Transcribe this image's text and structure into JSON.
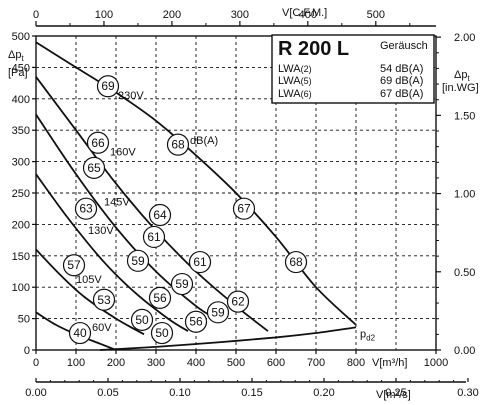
{
  "chart_data": {
    "type": "line",
    "axes": {
      "bottom_primary": {
        "label": "V[m³/h]",
        "ticks": [
          "0",
          "100",
          "200",
          "300",
          "400",
          "500",
          "600",
          "700",
          "800",
          "1000"
        ],
        "range": [
          0,
          1000
        ]
      },
      "bottom_secondary": {
        "label": "V[m³/s]",
        "ticks": [
          "0.00",
          "0.05",
          "0.10",
          "0.15",
          "0.20",
          "0.25",
          "0.30"
        ],
        "range": [
          0,
          0.3
        ]
      },
      "top": {
        "label": "V[C.F.M.]",
        "ticks": [
          "0",
          "100",
          "200",
          "300",
          "400",
          "500"
        ]
      },
      "left": {
        "label_1": "Δp",
        "label_sub": "t",
        "label_2": "[Pa]",
        "ticks": [
          "0",
          "50",
          "100",
          "150",
          "200",
          "250",
          "300",
          "350",
          "400",
          "450",
          "500"
        ],
        "range": [
          0,
          500
        ]
      },
      "right": {
        "label_1": "Δp",
        "label_sub": "t",
        "label_2": "[in.WG]",
        "ticks": [
          "0.00",
          "0.50",
          "1.00",
          "1.50",
          "2.00"
        ]
      }
    },
    "grid": true,
    "series": [
      {
        "name": "230V",
        "points": [
          [
            0,
            490
          ],
          [
            100,
            450
          ],
          [
            200,
            410
          ],
          [
            300,
            365
          ],
          [
            400,
            310
          ],
          [
            500,
            250
          ],
          [
            600,
            180
          ],
          [
            700,
            100
          ],
          [
            800,
            40
          ]
        ]
      },
      {
        "name": "160V",
        "points": [
          [
            0,
            435
          ],
          [
            100,
            350
          ],
          [
            200,
            265
          ],
          [
            300,
            190
          ],
          [
            400,
            125
          ],
          [
            500,
            70
          ],
          [
            580,
            30
          ]
        ]
      },
      {
        "name": "145V",
        "points": [
          [
            0,
            375
          ],
          [
            100,
            280
          ],
          [
            200,
            195
          ],
          [
            300,
            125
          ],
          [
            400,
            70
          ],
          [
            450,
            50
          ]
        ]
      },
      {
        "name": "130V",
        "points": [
          [
            0,
            280
          ],
          [
            80,
            210
          ],
          [
            170,
            140
          ],
          [
            250,
            90
          ],
          [
            330,
            50
          ],
          [
            380,
            30
          ]
        ]
      },
      {
        "name": "105V",
        "points": [
          [
            0,
            160
          ],
          [
            60,
            120
          ],
          [
            120,
            85
          ],
          [
            200,
            50
          ],
          [
            270,
            25
          ]
        ]
      },
      {
        "name": "60V",
        "points": [
          [
            0,
            60
          ],
          [
            50,
            40
          ],
          [
            100,
            25
          ],
          [
            160,
            10
          ],
          [
            200,
            0
          ]
        ]
      },
      {
        "name": "p_d2",
        "points": [
          [
            160,
            0
          ],
          [
            300,
            5
          ],
          [
            450,
            12
          ],
          [
            600,
            20
          ],
          [
            700,
            27
          ],
          [
            800,
            36
          ]
        ]
      }
    ],
    "annotations": [
      {
        "text": "69",
        "x": 180,
        "y": 420
      },
      {
        "text": "66",
        "x": 155,
        "y": 330
      },
      {
        "text": "65",
        "x": 145,
        "y": 290
      },
      {
        "text": "63",
        "x": 125,
        "y": 225
      },
      {
        "text": "57",
        "x": 95,
        "y": 135
      },
      {
        "text": "53",
        "x": 170,
        "y": 80
      },
      {
        "text": "40",
        "x": 110,
        "y": 27
      },
      {
        "text": "68",
        "x": 355,
        "y": 327
      },
      {
        "text": "64",
        "x": 310,
        "y": 215
      },
      {
        "text": "61",
        "x": 295,
        "y": 180
      },
      {
        "text": "59",
        "x": 255,
        "y": 142
      },
      {
        "text": "50",
        "x": 265,
        "y": 48
      },
      {
        "text": "56",
        "x": 310,
        "y": 83
      },
      {
        "text": "50",
        "x": 315,
        "y": 27
      },
      {
        "text": "59",
        "x": 365,
        "y": 105
      },
      {
        "text": "56",
        "x": 400,
        "y": 45
      },
      {
        "text": "61",
        "x": 410,
        "y": 140
      },
      {
        "text": "67",
        "x": 520,
        "y": 225
      },
      {
        "text": "68",
        "x": 650,
        "y": 140
      },
      {
        "text": "62",
        "x": 505,
        "y": 77
      },
      {
        "text": "59",
        "x": 455,
        "y": 60
      }
    ],
    "labels": [
      {
        "text": "230V",
        "x": 205,
        "y": 400
      },
      {
        "text": "160V",
        "x": 185,
        "y": 310
      },
      {
        "text": "145V",
        "x": 170,
        "y": 230
      },
      {
        "text": "130V",
        "x": 130,
        "y": 185
      },
      {
        "text": "105V",
        "x": 100,
        "y": 107
      },
      {
        "text": "60V",
        "x": 140,
        "y": 30
      },
      {
        "text": "dB(A)",
        "x": 385,
        "y": 328
      },
      {
        "text": "p",
        "sub": "d2",
        "x": 810,
        "y": 20
      }
    ]
  },
  "info_box": {
    "title": "R 200 L",
    "header": "Geräusch",
    "rows": [
      {
        "label": "LWA",
        "sub": "(2)",
        "value": "54 dB(A)"
      },
      {
        "label": "LWA",
        "sub": "(5)",
        "value": "69 dB(A)"
      },
      {
        "label": "LWA",
        "sub": "(6)",
        "value": "67 dB(A)"
      }
    ]
  }
}
